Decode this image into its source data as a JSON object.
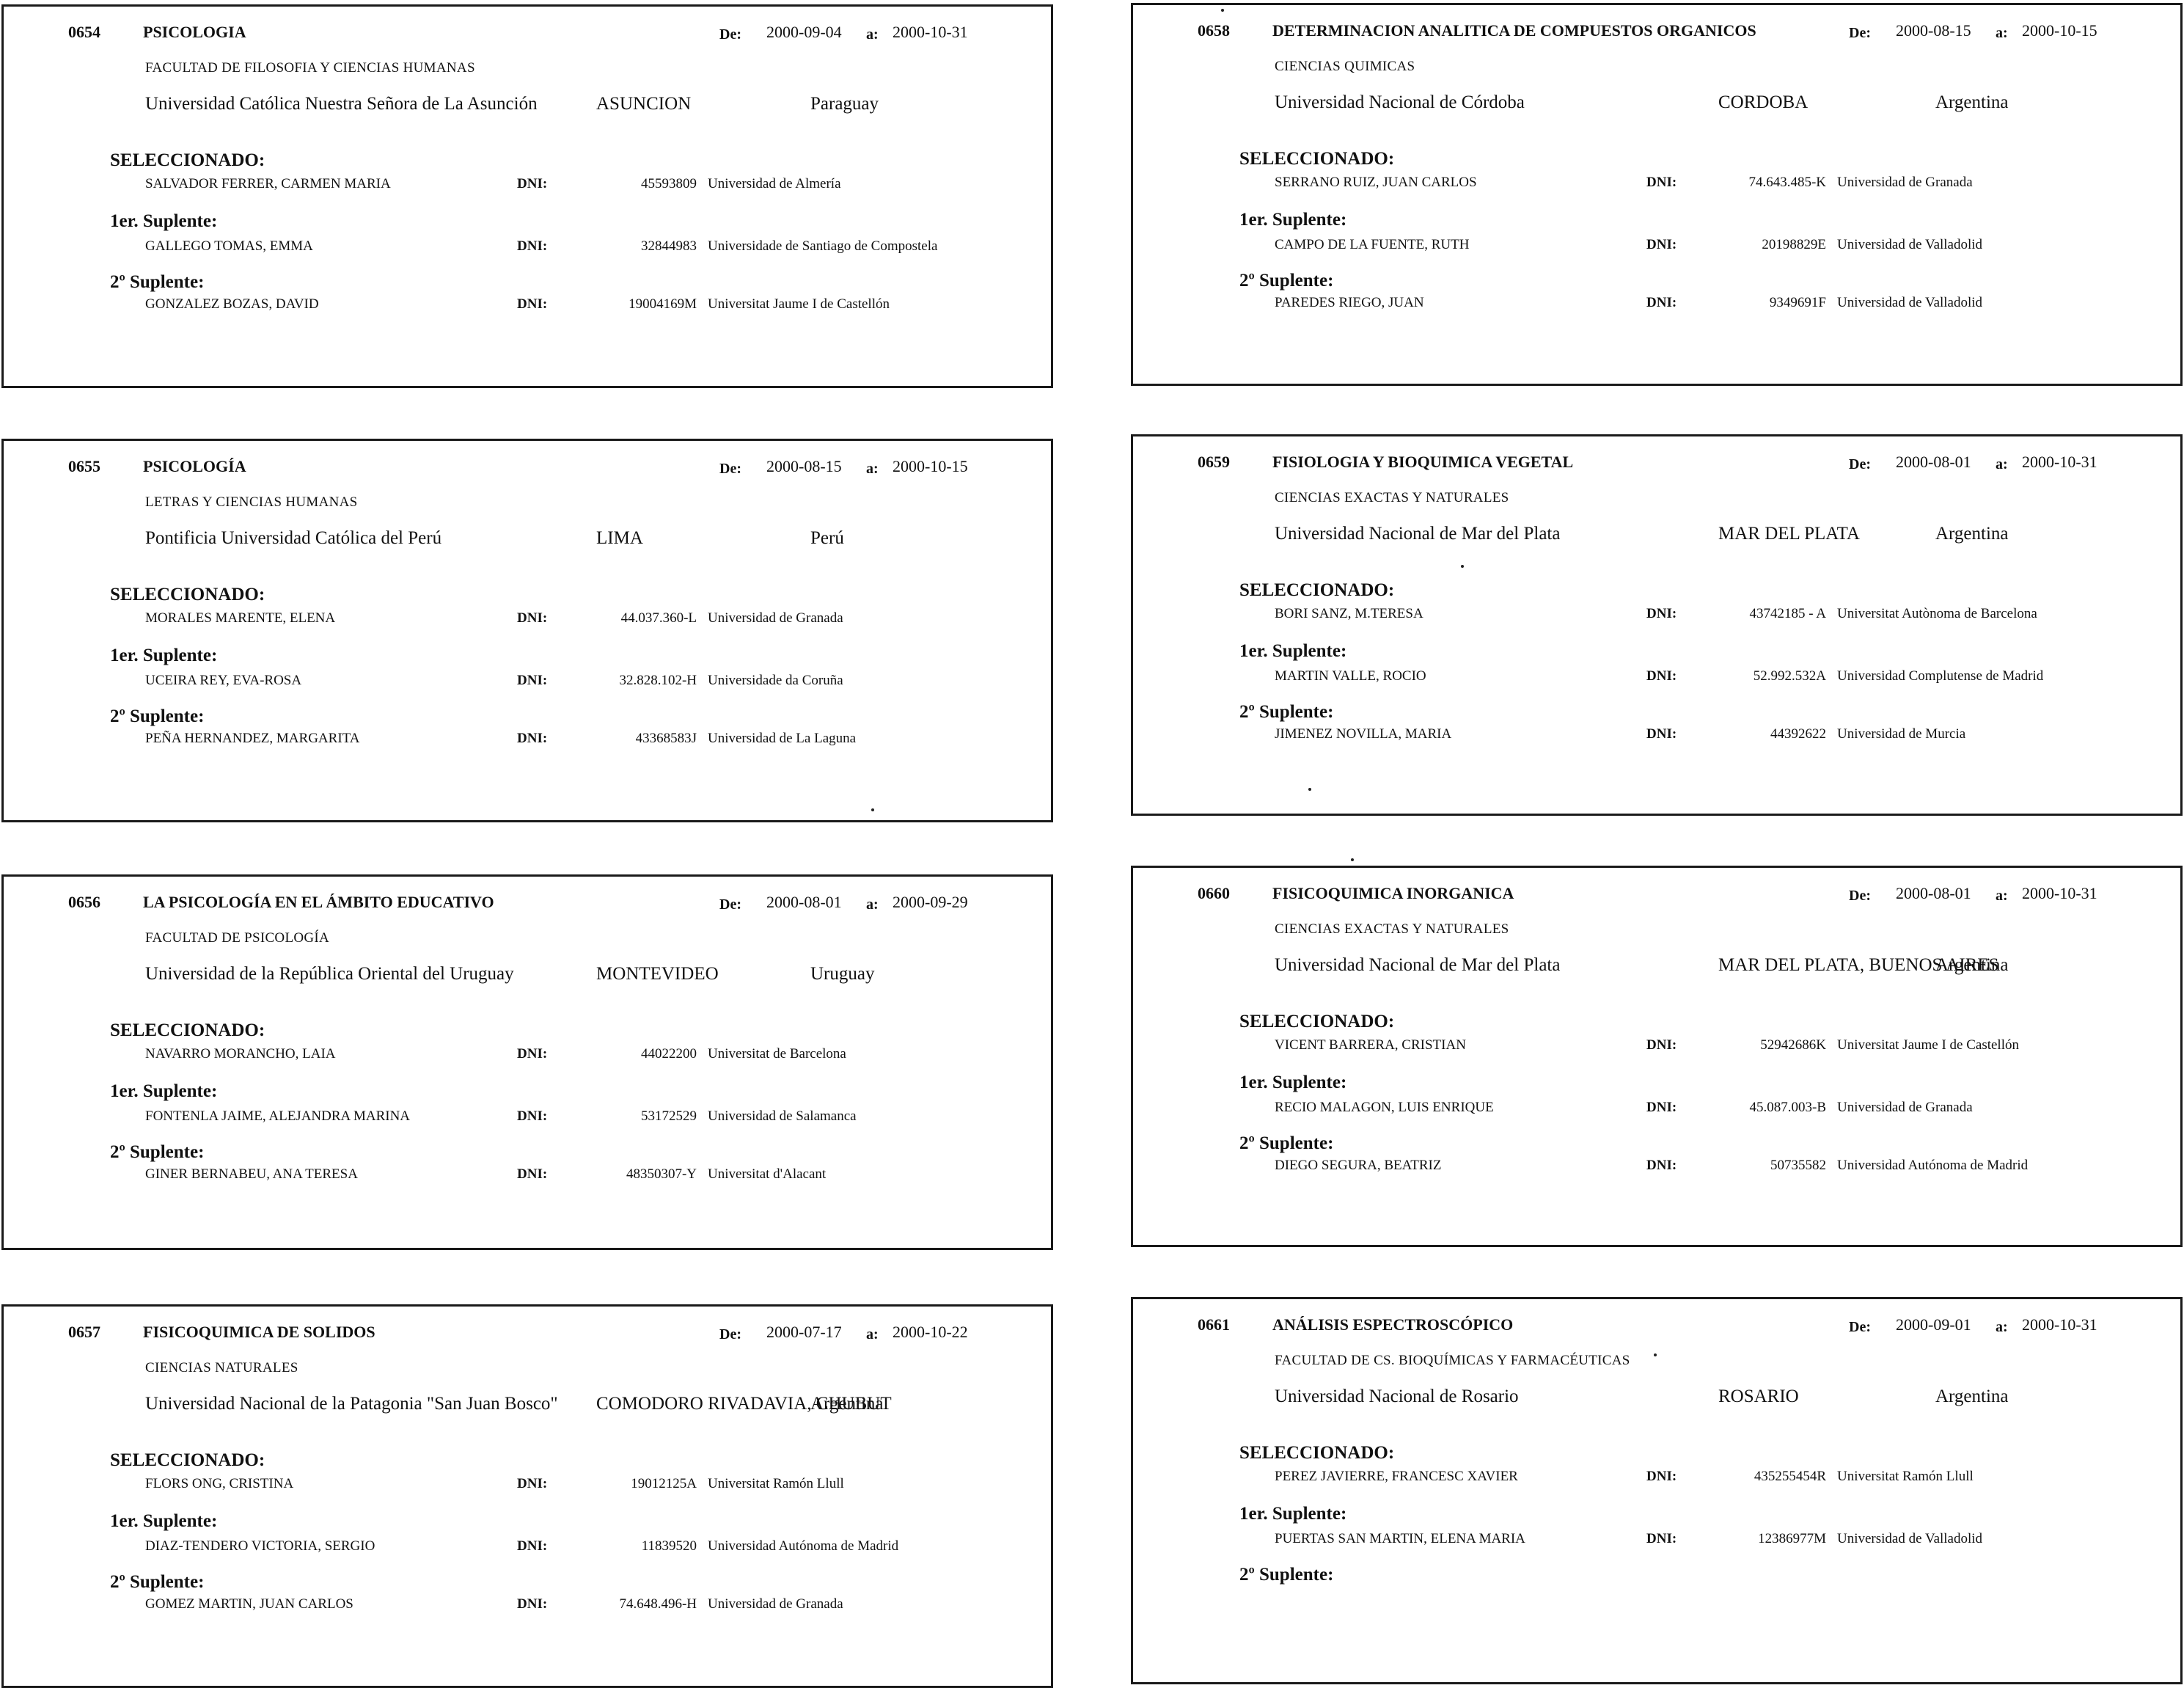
{
  "labels": {
    "from": "De:",
    "to": "a:",
    "selected": "SELECCIONADO:",
    "first_alt": "1er. Suplente:",
    "second_alt": "2º Suplente:",
    "dni": "DNI:"
  },
  "cards": [
    {
      "number": "0654",
      "subject": "PSICOLOGIA",
      "from": "2000-09-04",
      "to": "2000-10-31",
      "faculty": "FACULTAD DE FILOSOFIA Y CIENCIAS HUMANAS",
      "university": "Universidad Católica Nuestra Señora de La Asunción",
      "city": "ASUNCION",
      "country": "Paraguay",
      "selected": {
        "name": "SALVADOR FERRER, CARMEN MARIA",
        "dni": "45593809",
        "home": "Universidad de Almería"
      },
      "first_alt": {
        "name": "GALLEGO TOMAS, EMMA",
        "dni": "32844983",
        "home": "Universidade de Santiago de Compostela"
      },
      "second_alt": {
        "name": "GONZALEZ BOZAS, DAVID",
        "dni": "19004169M",
        "home": "Universitat Jaume I de Castellón"
      }
    },
    {
      "number": "0655",
      "subject": "PSICOLOGÍA",
      "from": "2000-08-15",
      "to": "2000-10-15",
      "faculty": "LETRAS Y CIENCIAS HUMANAS",
      "university": "Pontificia Universidad Católica del Perú",
      "city": "LIMA",
      "country": "Perú",
      "selected": {
        "name": "MORALES MARENTE, ELENA",
        "dni": "44.037.360-L",
        "home": "Universidad de Granada"
      },
      "first_alt": {
        "name": "UCEIRA REY, EVA-ROSA",
        "dni": "32.828.102-H",
        "home": "Universidade da Coruña"
      },
      "second_alt": {
        "name": "PEÑA HERNANDEZ, MARGARITA",
        "dni": "43368583J",
        "home": "Universidad de La Laguna"
      }
    },
    {
      "number": "0656",
      "subject": "LA PSICOLOGÍA EN EL ÁMBITO EDUCATIVO",
      "from": "2000-08-01",
      "to": "2000-09-29",
      "faculty": "FACULTAD DE PSICOLOGÍA",
      "university": "Universidad de la República Oriental del Uruguay",
      "city": "MONTEVIDEO",
      "country": "Uruguay",
      "selected": {
        "name": "NAVARRO MORANCHO, LAIA",
        "dni": "44022200",
        "home": "Universitat de Barcelona"
      },
      "first_alt": {
        "name": "FONTENLA JAIME, ALEJANDRA MARINA",
        "dni": "53172529",
        "home": "Universidad de Salamanca"
      },
      "second_alt": {
        "name": "GINER BERNABEU, ANA TERESA",
        "dni": "48350307-Y",
        "home": "Universitat d'Alacant"
      }
    },
    {
      "number": "0657",
      "subject": "FISICOQUIMICA DE SOLIDOS",
      "from": "2000-07-17",
      "to": "2000-10-22",
      "faculty": "CIENCIAS NATURALES",
      "university": "Universidad Nacional de la Patagonia \"San Juan Bosco\"",
      "city": "COMODORO\nRIVADAVIA, CHUBUT",
      "country": "Argentina",
      "selected": {
        "name": "FLORS ONG, CRISTINA",
        "dni": "19012125A",
        "home": "Universitat Ramón Llull"
      },
      "first_alt": {
        "name": "DIAZ-TENDERO VICTORIA, SERGIO",
        "dni": "11839520",
        "home": "Universidad Autónoma de Madrid"
      },
      "second_alt": {
        "name": "GOMEZ MARTIN, JUAN CARLOS",
        "dni": "74.648.496-H",
        "home": "Universidad de Granada"
      }
    },
    {
      "number": "0658",
      "subject": "DETERMINACION ANALITICA DE COMPUESTOS ORGANICOS",
      "from": "2000-08-15",
      "to": "2000-10-15",
      "faculty": "CIENCIAS QUIMICAS",
      "university": "Universidad Nacional de Córdoba",
      "city": "CORDOBA",
      "country": "Argentina",
      "selected": {
        "name": "SERRANO RUIZ, JUAN CARLOS",
        "dni": "74.643.485-K",
        "home": "Universidad de Granada"
      },
      "first_alt": {
        "name": "CAMPO DE LA FUENTE, RUTH",
        "dni": "20198829E",
        "home": "Universidad de Valladolid"
      },
      "second_alt": {
        "name": "PAREDES RIEGO, JUAN",
        "dni": "9349691F",
        "home": "Universidad de Valladolid"
      }
    },
    {
      "number": "0659",
      "subject": "FISIOLOGIA Y BIOQUIMICA VEGETAL",
      "from": "2000-08-01",
      "to": "2000-10-31",
      "faculty": "CIENCIAS EXACTAS Y NATURALES",
      "university": "Universidad Nacional de Mar del Plata",
      "city": "MAR DEL PLATA",
      "country": "Argentina",
      "selected": {
        "name": "BORI SANZ, M.TERESA",
        "dni": "43742185 - A",
        "home": "Universitat Autònoma de Barcelona"
      },
      "first_alt": {
        "name": "MARTIN VALLE, ROCIO",
        "dni": "52.992.532A",
        "home": "Universidad Complutense de Madrid"
      },
      "second_alt": {
        "name": "JIMENEZ NOVILLA, MARIA",
        "dni": "44392622",
        "home": "Universidad de Murcia"
      }
    },
    {
      "number": "0660",
      "subject": "FISICOQUIMICA INORGANICA",
      "from": "2000-08-01",
      "to": "2000-10-31",
      "faculty": "CIENCIAS EXACTAS Y NATURALES",
      "university": "Universidad Nacional de Mar del Plata",
      "city": "MAR DEL PLATA,\nBUENOS AIRES",
      "country": "Argentina",
      "selected": {
        "name": "VICENT BARRERA, CRISTIAN",
        "dni": "52942686K",
        "home": "Universitat Jaume I de Castellón"
      },
      "first_alt": {
        "name": "RECIO MALAGON, LUIS ENRIQUE",
        "dni": "45.087.003-B",
        "home": "Universidad de Granada"
      },
      "second_alt": {
        "name": "DIEGO SEGURA, BEATRIZ",
        "dni": "50735582",
        "home": "Universidad Autónoma de Madrid"
      }
    },
    {
      "number": "0661",
      "subject": "ANÁLISIS ESPECTROSCÓPICO",
      "from": "2000-09-01",
      "to": "2000-10-31",
      "faculty": "FACULTAD DE CS. BIOQUÍMICAS Y FARMACÉUTICAS",
      "university": "Universidad Nacional de Rosario",
      "city": "ROSARIO",
      "country": "Argentina",
      "selected": {
        "name": "PEREZ JAVIERRE, FRANCESC XAVIER",
        "dni": "435255454R",
        "home": "Universitat Ramón Llull"
      },
      "first_alt": {
        "name": "PUERTAS SAN MARTIN, ELENA MARIA",
        "dni": "12386977M",
        "home": "Universidad de Valladolid"
      },
      "second_alt": {
        "name": "",
        "dni": "",
        "home": ""
      }
    }
  ]
}
